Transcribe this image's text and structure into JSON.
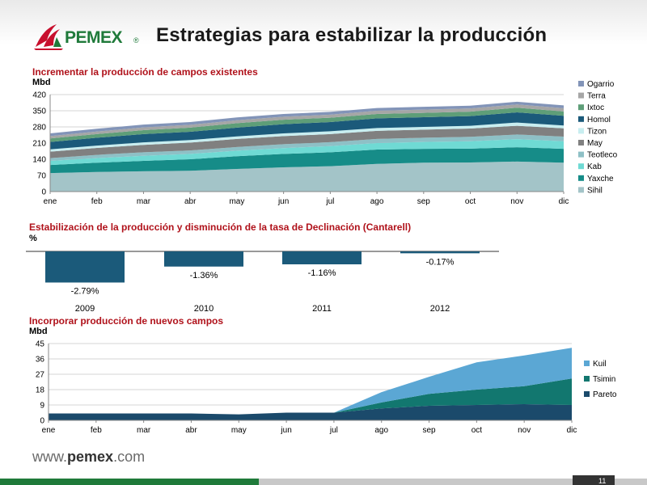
{
  "header": {
    "logo_text": "PEMEX",
    "title": "Estrategias para estabilizar la producción"
  },
  "footer": {
    "url_prefix": "www.",
    "url_name": "pemex",
    "url_suffix": ".com",
    "page_number": "11"
  },
  "colors": {
    "section_title": "#b0121b",
    "logo_red": "#c8102e",
    "logo_green": "#1f7a3a"
  },
  "chart_data": [
    {
      "type": "area",
      "stacked": true,
      "title": "Incrementar la producción de campos existentes",
      "ylabel": "Mbd",
      "categories": [
        "ene",
        "feb",
        "mar",
        "abr",
        "may",
        "jun",
        "jul",
        "ago",
        "sep",
        "oct",
        "nov",
        "dic"
      ],
      "ylim": [
        0,
        420
      ],
      "yticks": [
        0,
        70,
        140,
        210,
        280,
        350,
        420
      ],
      "legend_position": "right",
      "grid": true,
      "series": [
        {
          "name": "Sihil",
          "color": "#a3c4c8",
          "values": [
            80,
            85,
            88,
            90,
            98,
            105,
            110,
            120,
            125,
            126,
            130,
            125
          ]
        },
        {
          "name": "Yaxche",
          "color": "#168c88",
          "values": [
            35,
            40,
            45,
            50,
            55,
            58,
            60,
            62,
            60,
            60,
            62,
            60
          ]
        },
        {
          "name": "Kab",
          "color": "#6fdad4",
          "values": [
            18,
            20,
            22,
            23,
            24,
            25,
            27,
            28,
            30,
            32,
            35,
            33
          ]
        },
        {
          "name": "Teotleco",
          "color": "#8ec0c6",
          "values": [
            12,
            14,
            15,
            15,
            16,
            17,
            17,
            18,
            18,
            19,
            20,
            20
          ]
        },
        {
          "name": "May",
          "color": "#808080",
          "values": [
            28,
            30,
            32,
            34,
            35,
            35,
            35,
            35,
            35,
            36,
            38,
            36
          ]
        },
        {
          "name": "Tizon",
          "color": "#c8eef0",
          "values": [
            10,
            10,
            11,
            11,
            11,
            12,
            12,
            12,
            12,
            12,
            14,
            12
          ]
        },
        {
          "name": "Homol",
          "color": "#1b5a7a",
          "values": [
            32,
            34,
            36,
            36,
            38,
            40,
            40,
            42,
            42,
            42,
            44,
            42
          ]
        },
        {
          "name": "Ixtoc",
          "color": "#5e9e78",
          "values": [
            15,
            16,
            17,
            18,
            19,
            19,
            19,
            19,
            19,
            19,
            20,
            19
          ]
        },
        {
          "name": "Terra",
          "color": "#a6a6a6",
          "values": [
            10,
            11,
            12,
            12,
            13,
            13,
            13,
            14,
            14,
            14,
            14,
            14
          ]
        },
        {
          "name": "Ogarrio",
          "color": "#8294b8",
          "values": [
            12,
            12,
            12,
            12,
            12,
            12,
            12,
            12,
            12,
            12,
            12,
            12
          ]
        }
      ]
    },
    {
      "type": "bar",
      "title": "Estabilización de la producción y disminución de la tasa de Declinación (Cantarell)",
      "ylabel": "%",
      "categories": [
        "2009",
        "2010",
        "2011",
        "2012"
      ],
      "values": [
        -2.79,
        -1.36,
        -1.16,
        -0.17
      ],
      "value_labels": [
        "-2.79%",
        "-1.36%",
        "-1.16%",
        "-0.17%"
      ],
      "ylim": [
        -3,
        0
      ],
      "color": "#1b5a7a"
    },
    {
      "type": "area",
      "stacked": true,
      "title": "Incorporar producción de nuevos campos",
      "ylabel": "Mbd",
      "categories": [
        "ene",
        "feb",
        "mar",
        "abr",
        "may",
        "jun",
        "jul",
        "ago",
        "sep",
        "oct",
        "nov",
        "dic"
      ],
      "ylim": [
        0,
        45
      ],
      "yticks": [
        0,
        9,
        18,
        27,
        36,
        45
      ],
      "legend_position": "right",
      "grid": true,
      "series": [
        {
          "name": "Pareto",
          "color": "#1b4a6b",
          "values": [
            4,
            4,
            4,
            4,
            3.5,
            4.5,
            4.5,
            7,
            8.5,
            9,
            9.5,
            9
          ]
        },
        {
          "name": "Tsimin",
          "color": "#12776f",
          "values": [
            0,
            0,
            0,
            0,
            0,
            0,
            0,
            3.5,
            7,
            9,
            10.5,
            15.5
          ]
        },
        {
          "name": "Kuil",
          "color": "#5ba7d4",
          "values": [
            0,
            0,
            0,
            0,
            0,
            0,
            0,
            6,
            10,
            16,
            18,
            18
          ]
        }
      ]
    }
  ]
}
